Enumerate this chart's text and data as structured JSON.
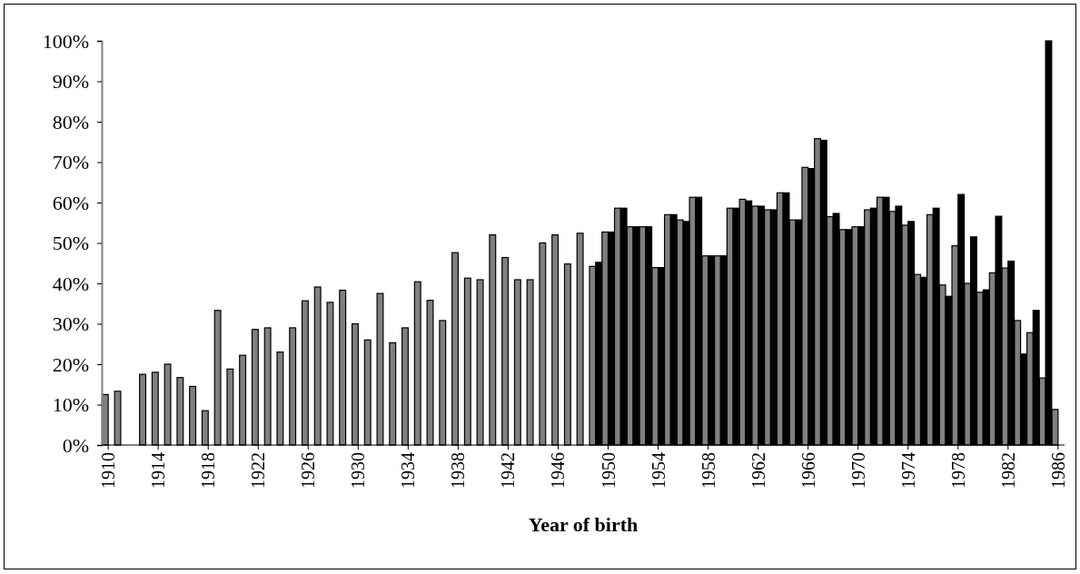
{
  "chart_data": {
    "type": "bar",
    "xlabel": "Year of birth",
    "categories": [
      "1910",
      null,
      null,
      null,
      "1914",
      null,
      null,
      null,
      "1918",
      null,
      null,
      null,
      "1922",
      null,
      null,
      null,
      "1926",
      null,
      null,
      null,
      "1930",
      null,
      null,
      null,
      "1934",
      null,
      null,
      null,
      "1938",
      null,
      null,
      null,
      "1942",
      null,
      null,
      null,
      "1946",
      null,
      null,
      null,
      "1950",
      null,
      null,
      null,
      "1954",
      null,
      null,
      null,
      "1958",
      null,
      null,
      null,
      "1962",
      null,
      null,
      null,
      "1966",
      null,
      null,
      null,
      "1970",
      null,
      null,
      null,
      "1974",
      null,
      null,
      null,
      "1978",
      null,
      null,
      null,
      "1982",
      null,
      null,
      null,
      "1986"
    ],
    "series": [
      {
        "color": "#808080",
        "values": [
          12.5,
          13.3,
          null,
          17.5,
          18,
          20,
          16.7,
          14.5,
          8.5,
          33.3,
          18.8,
          22.2,
          28.6,
          29,
          23,
          29,
          35.7,
          39.1,
          35.3,
          38.3,
          30,
          26,
          37.5,
          25.3,
          29,
          40.4,
          35.8,
          30.8,
          47.6,
          41.3,
          40.9,
          52,
          46.4,
          40.9,
          40.9,
          50,
          52,
          44.8,
          52.4,
          44.2,
          52.7,
          58.6,
          54,
          54,
          43.9,
          57,
          55.7,
          61.3,
          46.8,
          46.8,
          58.6,
          60.8,
          59.1,
          58.2,
          62.4,
          55.7,
          68.7,
          75.8,
          56.5,
          53.3,
          54,
          58.2,
          61.3,
          57.8,
          54.4,
          42.2,
          57,
          39.6,
          49.3,
          40,
          37.8,
          42.6,
          43.8,
          30.8,
          27.8,
          16.6,
          8.8
        ]
      },
      {
        "color": "#000000",
        "values": [
          null,
          null,
          null,
          null,
          null,
          null,
          null,
          null,
          null,
          null,
          null,
          null,
          null,
          null,
          null,
          null,
          null,
          null,
          null,
          null,
          null,
          null,
          null,
          null,
          null,
          null,
          null,
          null,
          null,
          null,
          null,
          null,
          null,
          null,
          null,
          null,
          null,
          null,
          null,
          45.2,
          52.7,
          58.6,
          54,
          54,
          43.9,
          57,
          55.3,
          61.3,
          46.8,
          46.8,
          58.6,
          60.4,
          59.1,
          58.2,
          62.4,
          55.7,
          68.4,
          75.4,
          57.3,
          53.3,
          54,
          58.6,
          61.3,
          59.1,
          55.3,
          41.5,
          58.6,
          36.8,
          62,
          51.5,
          38.4,
          56.6,
          45.5,
          22.5,
          33.3,
          100,
          null
        ]
      }
    ],
    "ylim": [
      0,
      100
    ],
    "yticks": [
      {
        "value": 0,
        "label": "0%"
      },
      {
        "value": 10,
        "label": "10%"
      },
      {
        "value": 20,
        "label": "20%"
      },
      {
        "value": 30,
        "label": "30%"
      },
      {
        "value": 40,
        "label": "40%"
      },
      {
        "value": 50,
        "label": "50%"
      },
      {
        "value": 60,
        "label": "60%"
      },
      {
        "value": 70,
        "label": "70%"
      },
      {
        "value": 80,
        "label": "80%"
      },
      {
        "value": 90,
        "label": "90%"
      },
      {
        "value": 100,
        "label": "100%"
      }
    ]
  }
}
